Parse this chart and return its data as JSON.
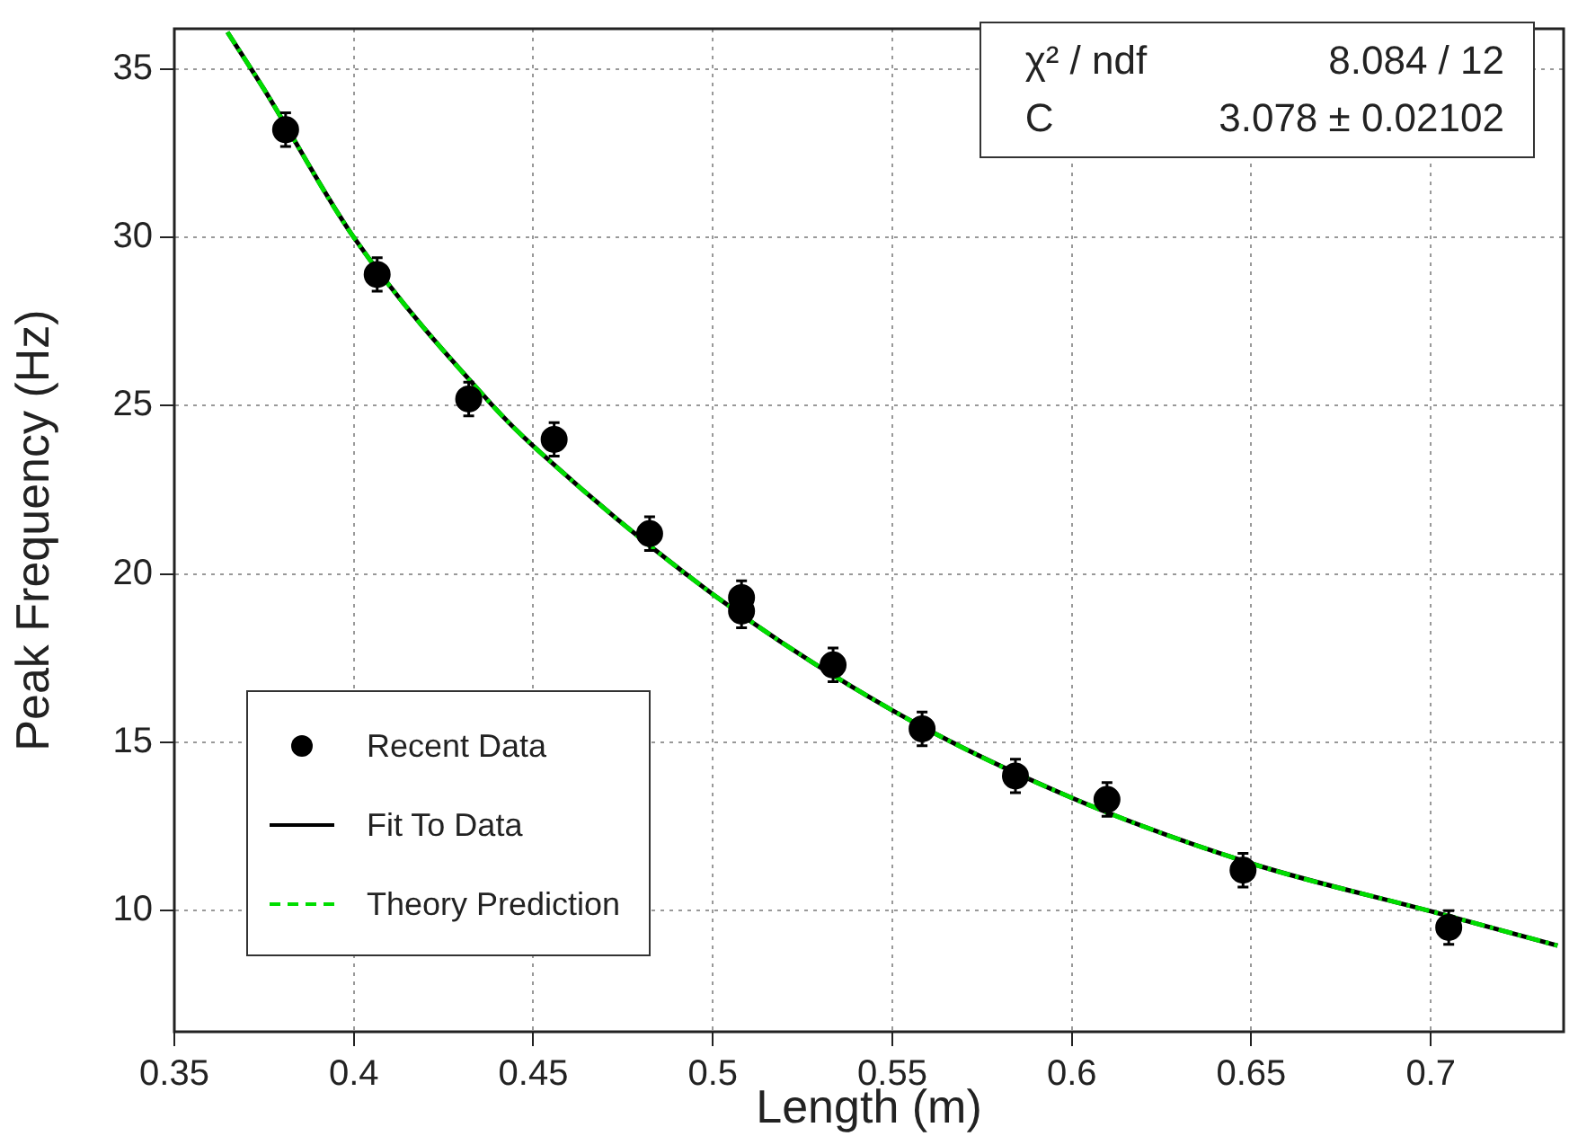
{
  "chart_data": {
    "type": "scatter",
    "xlabel": "Length (m)",
    "ylabel": "Peak Frequency (Hz)",
    "xlim": [
      0.35,
      0.737
    ],
    "ylim": [
      6.4,
      36.2
    ],
    "xticks": [
      0.35,
      0.4,
      0.45,
      0.5,
      0.55,
      0.6,
      0.65,
      0.7
    ],
    "yticks": [
      10,
      15,
      20,
      25,
      30,
      35
    ],
    "grid": true,
    "legend": "bottom left",
    "annotations": [
      "χ² / ndf",
      "8.084 / 12",
      "C",
      "3.078 ± 0.02102"
    ],
    "series": [
      {
        "name": "Recent Data",
        "color": "#000000",
        "marker": "circle",
        "x": [
          0.381,
          0.4065,
          0.432,
          0.4558,
          0.4824,
          0.508,
          0.508,
          0.5335,
          0.5583,
          0.5843,
          0.6098,
          0.6477,
          0.705
        ],
        "values": [
          33.2,
          28.9,
          25.2,
          24.0,
          21.2,
          19.3,
          18.9,
          17.3,
          15.4,
          14.0,
          13.3,
          11.2,
          9.5
        ],
        "errors": [
          0.5,
          0.5,
          0.5,
          0.5,
          0.5,
          0.5,
          0.5,
          0.5,
          0.5,
          0.5,
          0.5,
          0.5,
          0.5
        ]
      },
      {
        "type": "line",
        "name": "Fit To Data",
        "color": "#000000",
        "marker": "none",
        "line_style": "solid",
        "x": [
          0.3648,
          0.375,
          0.4,
          0.4387,
          0.45,
          0.5,
          0.55,
          0.6,
          0.65,
          0.7,
          0.7353
        ],
        "values": [
          36.1,
          34.4,
          30.0,
          25.0,
          23.8,
          19.4,
          15.95,
          13.35,
          11.4,
          9.98,
          8.96
        ]
      },
      {
        "type": "line",
        "name": "Theory Prediction",
        "color": "#00dd00",
        "marker": "none",
        "line_style": "dashed",
        "x": [
          0.3648,
          0.375,
          0.4,
          0.4387,
          0.45,
          0.5,
          0.55,
          0.6,
          0.65,
          0.7,
          0.7353
        ],
        "values": [
          36.1,
          34.4,
          30.0,
          25.0,
          23.8,
          19.4,
          15.95,
          13.35,
          11.4,
          9.98,
          8.96
        ]
      }
    ]
  }
}
